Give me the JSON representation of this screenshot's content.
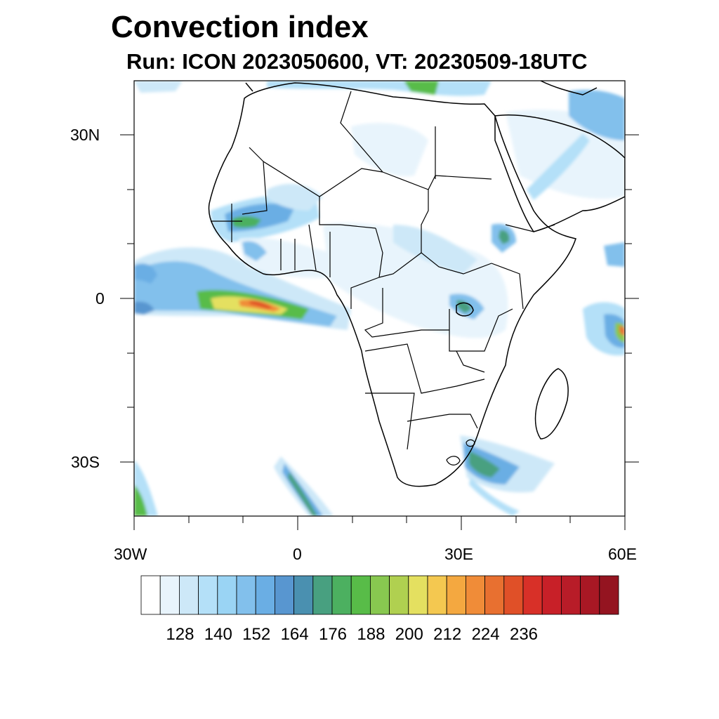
{
  "title": "Convection index",
  "subtitle": "Run: ICON 2023050600,  VT: 20230509-18UTC",
  "axes": {
    "lon_labels": [
      "30W",
      "0",
      "30E",
      "60E"
    ],
    "lat_labels": [
      "30N",
      "0",
      "30S"
    ]
  },
  "colorbar": {
    "colors": [
      "#ffffff",
      "#e8f4fc",
      "#cde8f8",
      "#b4e0f8",
      "#9ad4f4",
      "#82c0ec",
      "#6aaee4",
      "#5896d0",
      "#4a90b0",
      "#48a080",
      "#4cb060",
      "#58bc48",
      "#88c850",
      "#b0d050",
      "#e4e060",
      "#f4c850",
      "#f4a840",
      "#f08c38",
      "#e87030",
      "#e05028",
      "#d83028",
      "#c82028",
      "#b81c28",
      "#a81824",
      "#941420"
    ],
    "tick_labels": [
      "128",
      "140",
      "152",
      "164",
      "176",
      "188",
      "200",
      "212",
      "224",
      "236"
    ]
  }
}
